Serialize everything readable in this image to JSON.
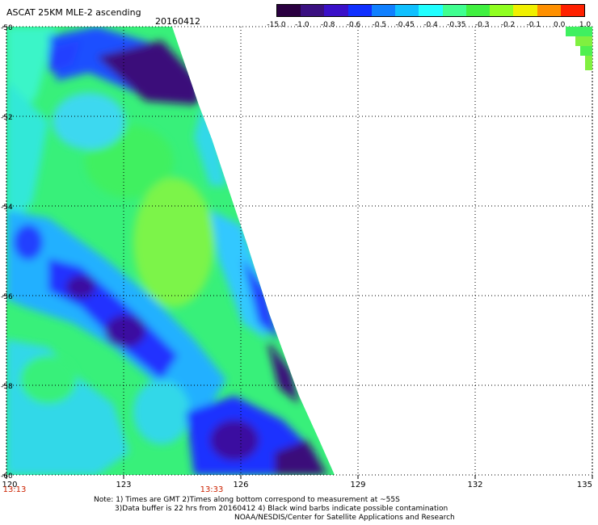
{
  "header": {
    "title": "ASCAT 25KM MLE-2 ascending",
    "date": "20160412"
  },
  "colorbar": {
    "labels": [
      "-15.0",
      "-1.0",
      "-0.8",
      "-0.6",
      "-0.5",
      "-0.45",
      "-0.4",
      "-0.35",
      "-0.3",
      "-0.2",
      "-0.1",
      "0.0",
      "1.0"
    ],
    "colors": [
      "#2a0040",
      "#3a1080",
      "#3a10c8",
      "#1030ff",
      "#1080ff",
      "#10c0ff",
      "#20ffff",
      "#40ff90",
      "#40f040",
      "#90ff20",
      "#f0f000",
      "#ff9000",
      "#ff2000"
    ]
  },
  "map": {
    "lat_labels": [
      "-50",
      "-52",
      "-54",
      "-56",
      "-58",
      "-60"
    ],
    "lon_labels": [
      "120",
      "123",
      "126",
      "129",
      "132",
      "135"
    ],
    "time_labels": [
      "13:13",
      "13:33"
    ]
  },
  "notes": {
    "line1": "Note: 1) Times are GMT 2)Times along bottom correspond to measurement at ~55S",
    "line2": "3)Data buffer is 22 hrs from 20160412 4) Black wind barbs indicate possible contamination",
    "line3": "NOAA/NESDIS/Center for Satellite Applications and Research"
  }
}
